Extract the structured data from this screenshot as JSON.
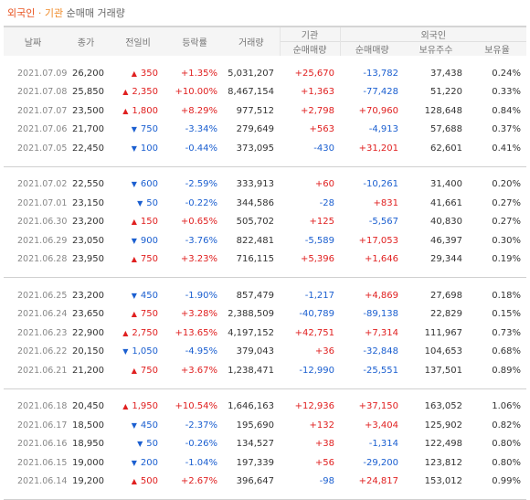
{
  "title": {
    "part1": "외국인",
    "dot": "·",
    "part2": "기관",
    "part3": "순매매 거래량"
  },
  "headers": {
    "date": "날짜",
    "close": "종가",
    "change": "전일비",
    "rate": "등락률",
    "volume": "거래량",
    "institution": "기관",
    "foreign": "외국인",
    "inst_net": "순매매량",
    "foreign_net": "순매매량",
    "holdings": "보유주수",
    "ratio": "보유율"
  },
  "colors": {
    "up": "#e02020",
    "down": "#1b5fd0",
    "brand": "#e8521f"
  },
  "groups": [
    {
      "rows": [
        {
          "date": "2021.07.09",
          "close": "26,200",
          "dir": "up",
          "change": "350",
          "rate": "+1.35%",
          "volume": "5,031,207",
          "inst": "+25,670",
          "foreign": "-13,782",
          "holdings": "37,438",
          "ratio": "0.24%"
        },
        {
          "date": "2021.07.08",
          "close": "25,850",
          "dir": "up",
          "change": "2,350",
          "rate": "+10.00%",
          "volume": "8,467,154",
          "inst": "+1,363",
          "foreign": "-77,428",
          "holdings": "51,220",
          "ratio": "0.33%"
        },
        {
          "date": "2021.07.07",
          "close": "23,500",
          "dir": "up",
          "change": "1,800",
          "rate": "+8.29%",
          "volume": "977,512",
          "inst": "+2,798",
          "foreign": "+70,960",
          "holdings": "128,648",
          "ratio": "0.84%"
        },
        {
          "date": "2021.07.06",
          "close": "21,700",
          "dir": "down",
          "change": "750",
          "rate": "-3.34%",
          "volume": "279,649",
          "inst": "+563",
          "foreign": "-4,913",
          "holdings": "57,688",
          "ratio": "0.37%"
        },
        {
          "date": "2021.07.05",
          "close": "22,450",
          "dir": "down",
          "change": "100",
          "rate": "-0.44%",
          "volume": "373,095",
          "inst": "-430",
          "foreign": "+31,201",
          "holdings": "62,601",
          "ratio": "0.41%"
        }
      ]
    },
    {
      "rows": [
        {
          "date": "2021.07.02",
          "close": "22,550",
          "dir": "down",
          "change": "600",
          "rate": "-2.59%",
          "volume": "333,913",
          "inst": "+60",
          "foreign": "-10,261",
          "holdings": "31,400",
          "ratio": "0.20%"
        },
        {
          "date": "2021.07.01",
          "close": "23,150",
          "dir": "down",
          "change": "50",
          "rate": "-0.22%",
          "volume": "344,586",
          "inst": "-28",
          "foreign": "+831",
          "holdings": "41,661",
          "ratio": "0.27%"
        },
        {
          "date": "2021.06.30",
          "close": "23,200",
          "dir": "up",
          "change": "150",
          "rate": "+0.65%",
          "volume": "505,702",
          "inst": "+125",
          "foreign": "-5,567",
          "holdings": "40,830",
          "ratio": "0.27%"
        },
        {
          "date": "2021.06.29",
          "close": "23,050",
          "dir": "down",
          "change": "900",
          "rate": "-3.76%",
          "volume": "822,481",
          "inst": "-5,589",
          "foreign": "+17,053",
          "holdings": "46,397",
          "ratio": "0.30%"
        },
        {
          "date": "2021.06.28",
          "close": "23,950",
          "dir": "up",
          "change": "750",
          "rate": "+3.23%",
          "volume": "716,115",
          "inst": "+5,396",
          "foreign": "+1,646",
          "holdings": "29,344",
          "ratio": "0.19%"
        }
      ]
    },
    {
      "rows": [
        {
          "date": "2021.06.25",
          "close": "23,200",
          "dir": "down",
          "change": "450",
          "rate": "-1.90%",
          "volume": "857,479",
          "inst": "-1,217",
          "foreign": "+4,869",
          "holdings": "27,698",
          "ratio": "0.18%"
        },
        {
          "date": "2021.06.24",
          "close": "23,650",
          "dir": "up",
          "change": "750",
          "rate": "+3.28%",
          "volume": "2,388,509",
          "inst": "-40,789",
          "foreign": "-89,138",
          "holdings": "22,829",
          "ratio": "0.15%"
        },
        {
          "date": "2021.06.23",
          "close": "22,900",
          "dir": "up",
          "change": "2,750",
          "rate": "+13.65%",
          "volume": "4,197,152",
          "inst": "+42,751",
          "foreign": "+7,314",
          "holdings": "111,967",
          "ratio": "0.73%"
        },
        {
          "date": "2021.06.22",
          "close": "20,150",
          "dir": "down",
          "change": "1,050",
          "rate": "-4.95%",
          "volume": "379,043",
          "inst": "+36",
          "foreign": "-32,848",
          "holdings": "104,653",
          "ratio": "0.68%"
        },
        {
          "date": "2021.06.21",
          "close": "21,200",
          "dir": "up",
          "change": "750",
          "rate": "+3.67%",
          "volume": "1,238,471",
          "inst": "-12,990",
          "foreign": "-25,551",
          "holdings": "137,501",
          "ratio": "0.89%"
        }
      ]
    },
    {
      "rows": [
        {
          "date": "2021.06.18",
          "close": "20,450",
          "dir": "up",
          "change": "1,950",
          "rate": "+10.54%",
          "volume": "1,646,163",
          "inst": "+12,936",
          "foreign": "+37,150",
          "holdings": "163,052",
          "ratio": "1.06%"
        },
        {
          "date": "2021.06.17",
          "close": "18,500",
          "dir": "down",
          "change": "450",
          "rate": "-2.37%",
          "volume": "195,690",
          "inst": "+132",
          "foreign": "+3,404",
          "holdings": "125,902",
          "ratio": "0.82%"
        },
        {
          "date": "2021.06.16",
          "close": "18,950",
          "dir": "down",
          "change": "50",
          "rate": "-0.26%",
          "volume": "134,527",
          "inst": "+38",
          "foreign": "-1,314",
          "holdings": "122,498",
          "ratio": "0.80%"
        },
        {
          "date": "2021.06.15",
          "close": "19,000",
          "dir": "down",
          "change": "200",
          "rate": "-1.04%",
          "volume": "197,339",
          "inst": "+56",
          "foreign": "-29,200",
          "holdings": "123,812",
          "ratio": "0.80%"
        },
        {
          "date": "2021.06.14",
          "close": "19,200",
          "dir": "up",
          "change": "500",
          "rate": "+2.67%",
          "volume": "396,647",
          "inst": "-98",
          "foreign": "+24,817",
          "holdings": "153,012",
          "ratio": "0.99%"
        }
      ]
    }
  ]
}
